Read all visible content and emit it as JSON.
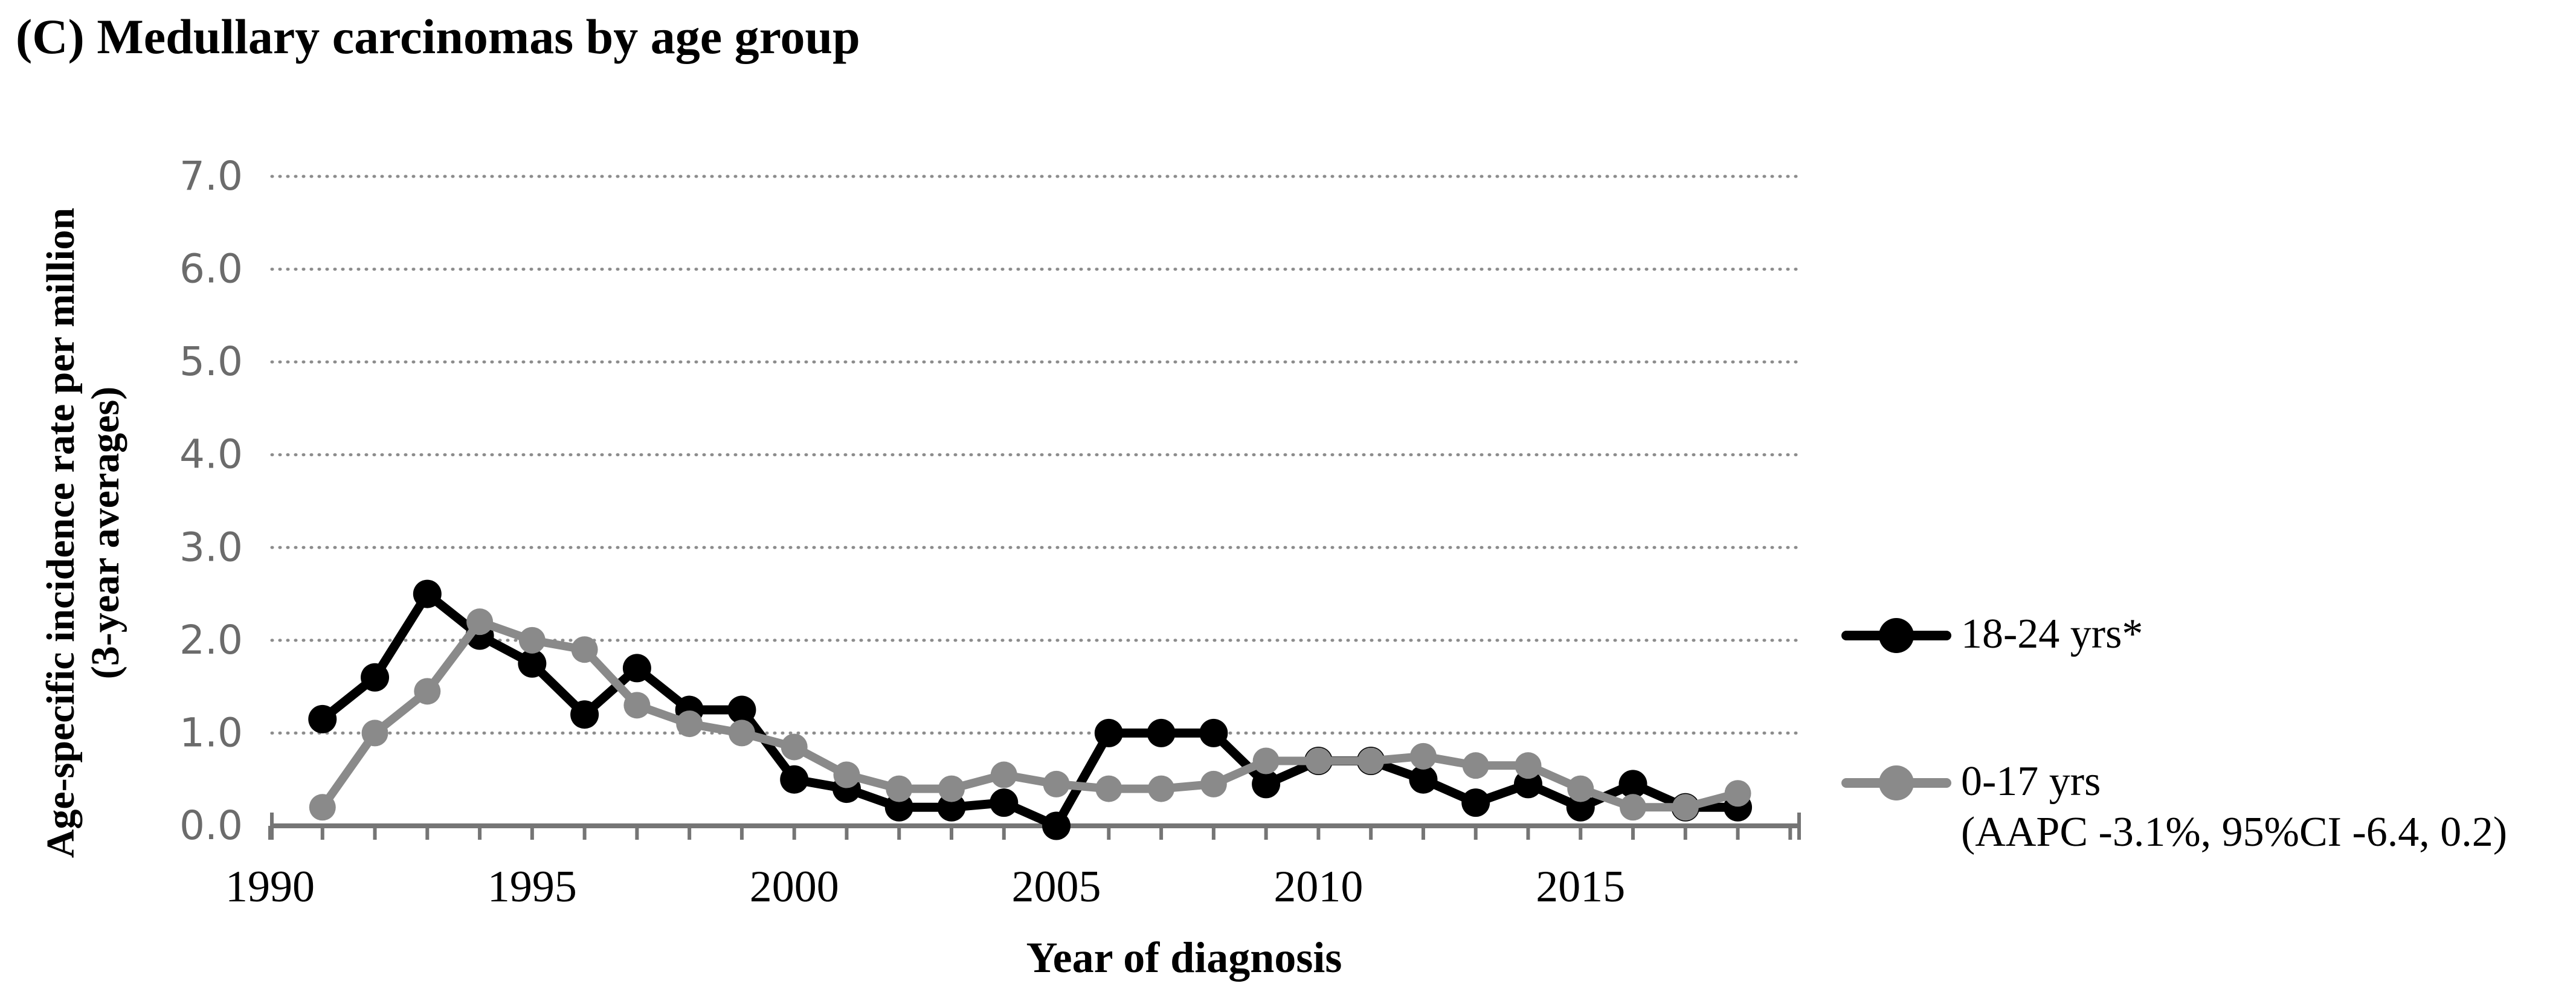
{
  "chart_data": {
    "type": "line",
    "title": "(C) Medullary carcinomas by age group",
    "xlabel": "Year of diagnosis",
    "ylabel": "Age-specific incidence rate per million",
    "ylabel_line2": "(3-year averages)",
    "x": [
      1991,
      1992,
      1993,
      1994,
      1995,
      1996,
      1997,
      1998,
      1999,
      2000,
      2001,
      2002,
      2003,
      2004,
      2005,
      2006,
      2007,
      2008,
      2009,
      2010,
      2011,
      2012,
      2013,
      2014,
      2015,
      2016,
      2017,
      2018
    ],
    "series": [
      {
        "name": "18-24 yrs*",
        "color": "#000000",
        "values": [
          1.15,
          1.6,
          2.5,
          2.05,
          1.75,
          1.2,
          1.7,
          1.25,
          1.25,
          0.5,
          0.4,
          0.2,
          0.2,
          0.25,
          0.0,
          1.0,
          1.0,
          1.0,
          0.45,
          0.7,
          0.7,
          0.5,
          0.25,
          0.45,
          0.2,
          0.45,
          0.2,
          0.2
        ]
      },
      {
        "name": "0-17 yrs",
        "name_line2": "(AAPC -3.1%, 95%CI -6.4, 0.2)",
        "color": "#8a8a8a",
        "values": [
          0.2,
          1.0,
          1.45,
          2.2,
          2.0,
          1.9,
          1.3,
          1.1,
          1.0,
          0.85,
          0.55,
          0.4,
          0.4,
          0.55,
          0.45,
          0.4,
          0.4,
          0.45,
          0.7,
          0.7,
          0.7,
          0.75,
          0.65,
          0.65,
          0.4,
          0.2,
          0.2,
          0.35
        ]
      }
    ],
    "ylim": [
      0.0,
      7.0
    ],
    "ytick_labels": [
      "0.0",
      "1.0",
      "2.0",
      "3.0",
      "4.0",
      "5.0",
      "6.0",
      "7.0"
    ],
    "xticks": [
      1990,
      1995,
      2000,
      2005,
      2010,
      2015
    ],
    "xaxis_range": [
      1990,
      2019
    ],
    "grid": "horizontal dotted",
    "legend_position": "right",
    "colors": {
      "axis": "#757575",
      "grid": "#8c8c8c",
      "ytick_label": "#6b6b6b",
      "xtick_label": "#000000"
    }
  }
}
